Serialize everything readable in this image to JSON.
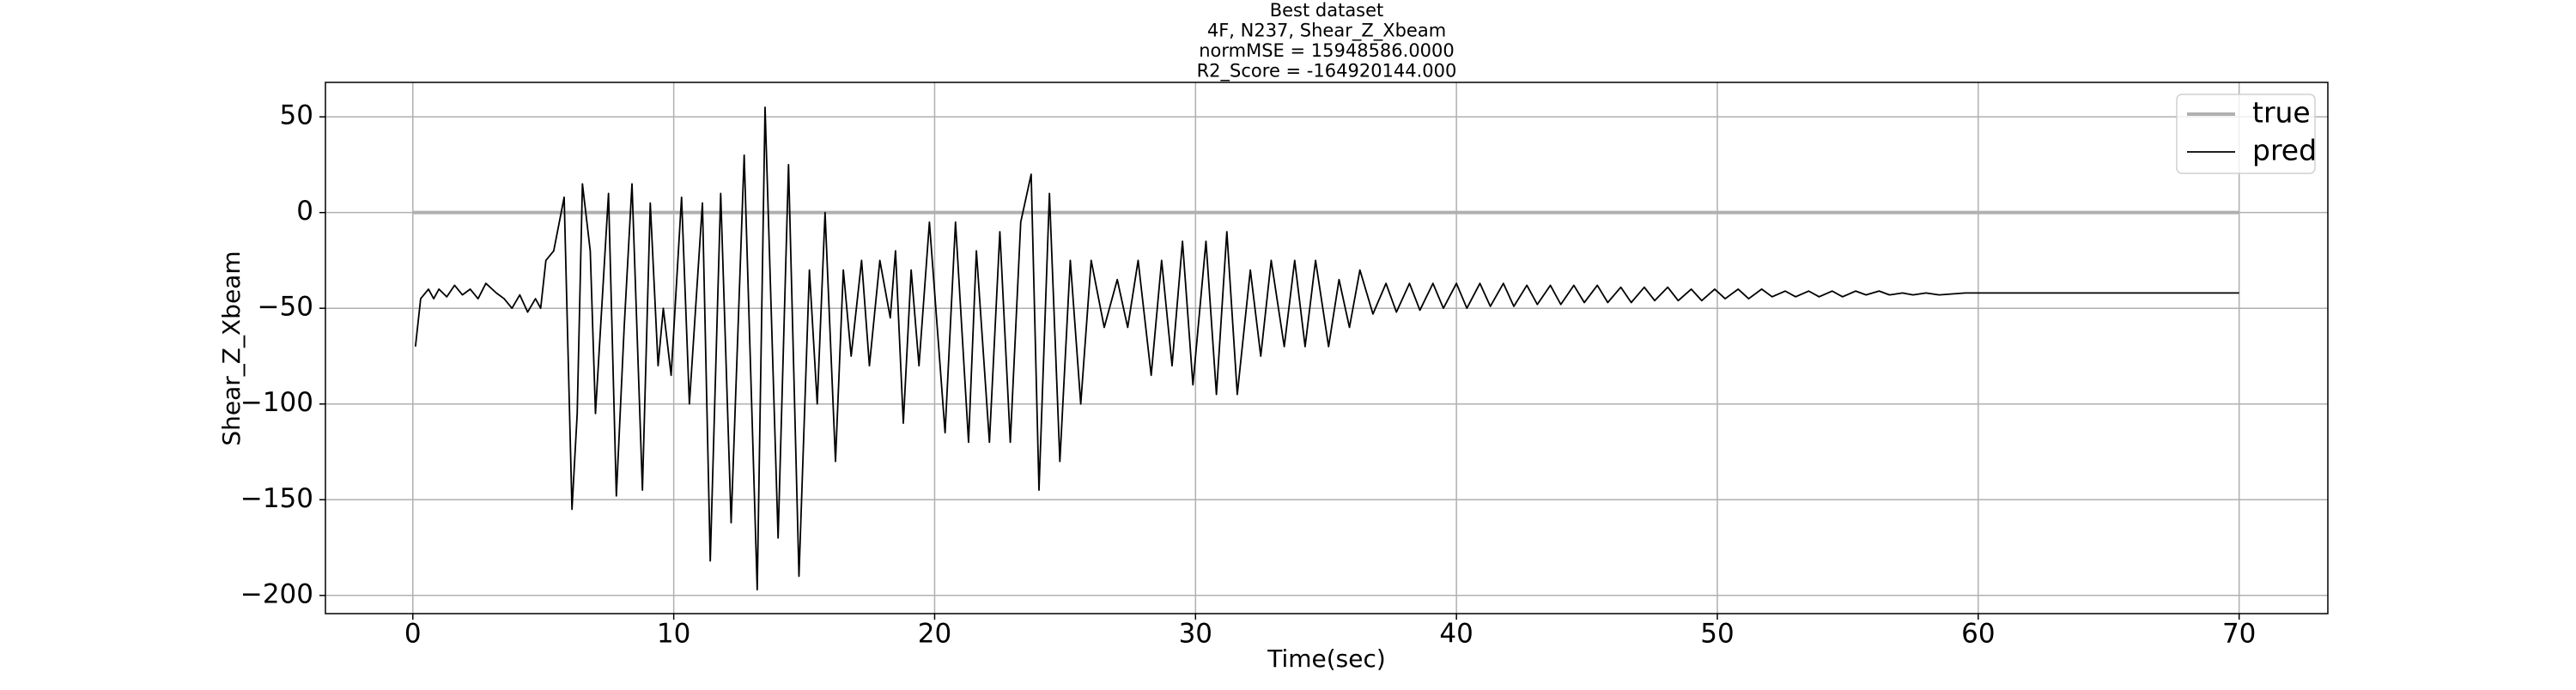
{
  "chart_data": {
    "type": "line",
    "title": [
      "Best dataset",
      "4F, N237, Shear_Z_Xbeam",
      "normMSE = 15948586.0000",
      "R2_Score = -164920144.000"
    ],
    "xlabel": "Time(sec)",
    "ylabel": "Shear_Z_Xbeam",
    "xlim": [
      -3.35,
      73.4
    ],
    "ylim": [
      -209.5,
      68
    ],
    "xticks": [
      0,
      10,
      20,
      30,
      40,
      50,
      60,
      70
    ],
    "yticks": [
      {
        "value": -200,
        "label": "−200"
      },
      {
        "value": -150,
        "label": "−150"
      },
      {
        "value": -100,
        "label": "−100"
      },
      {
        "value": -50,
        "label": "−50"
      },
      0,
      50
    ],
    "grid": true,
    "legend": "upper right",
    "series": [
      {
        "name": "true",
        "color": "#b0b0b0",
        "x": [
          0,
          70
        ],
        "values": [
          0,
          0
        ]
      },
      {
        "name": "pred",
        "color": "#000000",
        "x": [
          0.1,
          0.3,
          0.6,
          0.8,
          1.0,
          1.3,
          1.6,
          1.9,
          2.2,
          2.5,
          2.8,
          3.2,
          3.5,
          3.8,
          4.1,
          4.4,
          4.7,
          4.9,
          5.1,
          5.4,
          5.8,
          6.1,
          6.3,
          6.5,
          6.8,
          7.0,
          7.5,
          7.8,
          8.1,
          8.4,
          8.8,
          9.1,
          9.4,
          9.6,
          9.9,
          10.3,
          10.6,
          11.1,
          11.4,
          11.8,
          12.2,
          12.7,
          13.2,
          13.5,
          14.0,
          14.4,
          14.8,
          15.2,
          15.5,
          15.8,
          16.2,
          16.5,
          16.8,
          17.2,
          17.5,
          17.9,
          18.3,
          18.5,
          18.8,
          19.1,
          19.4,
          19.8,
          20.4,
          20.8,
          21.3,
          21.6,
          22.1,
          22.5,
          22.9,
          23.3,
          23.7,
          24.0,
          24.4,
          24.8,
          25.2,
          25.6,
          26.0,
          26.5,
          27.0,
          27.4,
          27.8,
          28.3,
          28.7,
          29.1,
          29.5,
          29.9,
          30.4,
          30.8,
          31.2,
          31.6,
          32.1,
          32.5,
          32.9,
          33.4,
          33.8,
          34.2,
          34.6,
          35.1,
          35.5,
          35.9,
          36.3,
          36.8,
          37.3,
          37.7,
          38.2,
          38.6,
          39.1,
          39.5,
          40.0,
          40.4,
          40.9,
          41.3,
          41.8,
          42.2,
          42.7,
          43.1,
          43.6,
          44.0,
          44.5,
          44.9,
          45.4,
          45.8,
          46.3,
          46.7,
          47.2,
          47.6,
          48.1,
          48.5,
          49.0,
          49.4,
          49.9,
          50.3,
          50.8,
          51.2,
          51.7,
          52.1,
          52.6,
          53.0,
          53.5,
          53.9,
          54.4,
          54.8,
          55.3,
          55.7,
          56.2,
          56.6,
          57.1,
          57.5,
          58.0,
          58.5,
          59.5,
          70.0
        ],
        "values": [
          -70,
          -45,
          -40,
          -45,
          -40,
          -44,
          -38,
          -43,
          -40,
          -45,
          -37,
          -42,
          -45,
          -50,
          -43,
          -52,
          -45,
          -50,
          -25,
          -20,
          8,
          -155,
          -105,
          15,
          -20,
          -105,
          10,
          -148,
          -60,
          15,
          -145,
          5,
          -80,
          -50,
          -85,
          8,
          -100,
          5,
          -182,
          10,
          -162,
          30,
          -197,
          55,
          -170,
          25,
          -190,
          -30,
          -100,
          0,
          -130,
          -30,
          -75,
          -25,
          -80,
          -25,
          -55,
          -20,
          -110,
          -30,
          -80,
          -5,
          -115,
          -5,
          -120,
          -20,
          -120,
          -10,
          -120,
          -5,
          20,
          -145,
          10,
          -130,
          -25,
          -100,
          -25,
          -60,
          -35,
          -60,
          -25,
          -85,
          -25,
          -80,
          -15,
          -90,
          -15,
          -95,
          -10,
          -95,
          -30,
          -75,
          -25,
          -70,
          -25,
          -70,
          -25,
          -70,
          -35,
          -60,
          -30,
          -53,
          -37,
          -52,
          -37,
          -51,
          -37,
          -50,
          -37,
          -50,
          -37,
          -49,
          -37,
          -49,
          -38,
          -48,
          -38,
          -48,
          -38,
          -47,
          -38,
          -47,
          -39,
          -47,
          -39,
          -46,
          -39,
          -46,
          -40,
          -46,
          -40,
          -45,
          -40,
          -45,
          -40,
          -44,
          -41,
          -44,
          -41,
          -44,
          -41,
          -44,
          -41,
          -43,
          -41,
          -43,
          -42,
          -43,
          -42,
          -43,
          -42,
          -42
        ]
      }
    ]
  }
}
